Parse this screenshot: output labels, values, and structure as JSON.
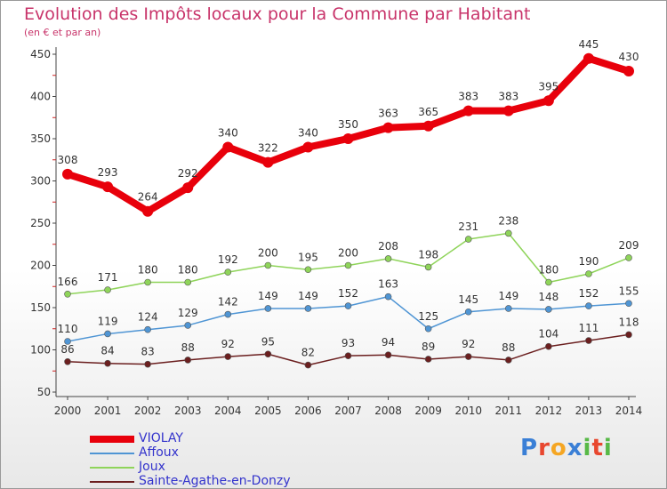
{
  "header": {
    "title": "Evolution des Impôts locaux pour la Commune par Habitant",
    "subtitle": "(en € et par an)"
  },
  "logo": {
    "text": "Proxiti",
    "colors": [
      "#3a7fd6",
      "#e8472f",
      "#f5a623",
      "#3a7fd6",
      "#58b947",
      "#e8472f",
      "#58b947"
    ]
  },
  "chart_data": {
    "type": "line",
    "title": "Evolution des Impôts locaux pour la Commune par Habitant",
    "subtitle": "(en € et par an)",
    "x": [
      "2000",
      "2001",
      "2002",
      "2003",
      "2004",
      "2005",
      "2006",
      "2007",
      "2008",
      "2009",
      "2010",
      "2011",
      "2012",
      "2013",
      "2014"
    ],
    "ylim": [
      50,
      450
    ],
    "yticks": [
      50,
      100,
      150,
      200,
      250,
      300,
      350,
      400,
      450
    ],
    "grid": false,
    "legend_position": "bottom-left",
    "series": [
      {
        "name": "VIOLAY",
        "color": "#e8000b",
        "values": [
          308,
          293,
          264,
          292,
          340,
          322,
          340,
          350,
          363,
          365,
          383,
          383,
          395,
          445,
          430
        ]
      },
      {
        "name": "Affoux",
        "color": "#4f95d4",
        "values": [
          110,
          119,
          124,
          129,
          142,
          149,
          149,
          152,
          163,
          125,
          145,
          149,
          148,
          152,
          155
        ]
      },
      {
        "name": "Joux",
        "color": "#8fd45a",
        "values": [
          166,
          171,
          180,
          180,
          192,
          200,
          195,
          200,
          208,
          198,
          231,
          238,
          180,
          190,
          209
        ]
      },
      {
        "name": "Sainte-Agathe-en-Donzy",
        "color": "#6b1f1f",
        "values": [
          86,
          84,
          83,
          88,
          92,
          95,
          82,
          93,
          94,
          89,
          92,
          88,
          104,
          111,
          118
        ]
      }
    ]
  }
}
